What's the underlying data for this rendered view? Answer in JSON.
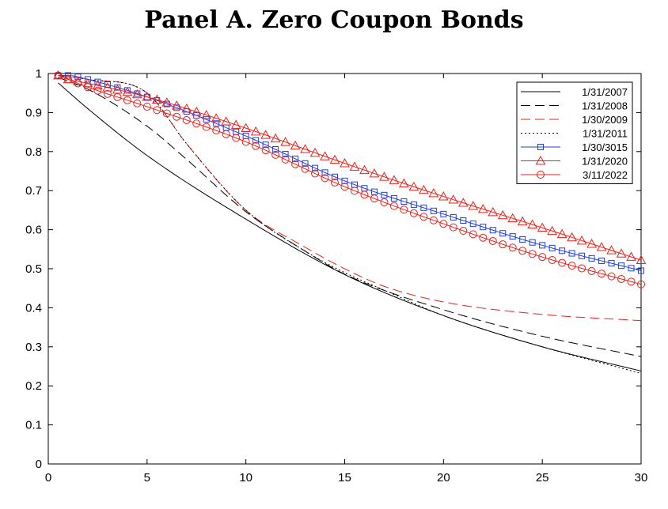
{
  "chart_data": {
    "type": "line",
    "title": "Panel A. Zero Coupon Bonds",
    "xlabel": "",
    "ylabel": "",
    "xlim": [
      0,
      30
    ],
    "ylim": [
      0,
      1
    ],
    "x_ticks": [
      0,
      5,
      10,
      15,
      20,
      25,
      30
    ],
    "y_ticks": [
      0,
      0.1,
      0.2,
      0.3,
      0.4,
      0.5,
      0.6,
      0.7,
      0.8,
      0.9,
      1
    ],
    "grid": false,
    "legend_position": "top-right",
    "series": [
      {
        "name": "1/31/2007",
        "color": "#000000",
        "line_style": "solid",
        "marker": "none",
        "x": [
          0.5,
          2,
          5,
          10,
          15,
          20,
          25,
          30
        ],
        "y": [
          0.976,
          0.91,
          0.79,
          0.627,
          0.485,
          0.38,
          0.3,
          0.238
        ]
      },
      {
        "name": "1/31/2008",
        "color": "#000000",
        "line_style": "dashed",
        "marker": "none",
        "x": [
          0.5,
          2,
          5,
          7,
          10,
          13,
          15,
          20,
          25,
          30
        ],
        "y": [
          0.99,
          0.96,
          0.865,
          0.78,
          0.646,
          0.545,
          0.486,
          0.395,
          0.327,
          0.275
        ]
      },
      {
        "name": "1/30/2009",
        "color": "#e8211b",
        "line_style": "dashed",
        "marker": "none",
        "x": [
          0.5,
          2,
          5,
          7,
          10,
          13,
          15,
          17,
          20,
          25,
          30
        ],
        "y": [
          0.995,
          0.985,
          0.95,
          0.82,
          0.65,
          0.555,
          0.5,
          0.455,
          0.415,
          0.383,
          0.367
        ]
      },
      {
        "name": "1/31/2011",
        "color": "#000000",
        "line_style": "dotted",
        "marker": "none",
        "x": [
          0.5,
          2,
          5,
          7,
          10,
          13,
          15,
          17,
          20,
          25,
          30
        ],
        "y": [
          0.995,
          0.985,
          0.95,
          0.82,
          0.65,
          0.545,
          0.49,
          0.445,
          0.38,
          0.3,
          0.232
        ]
      },
      {
        "name": "1/30/3015",
        "color": "#1f3fe0",
        "line_style": "solid",
        "marker": "square",
        "x": [
          0.5,
          1,
          2,
          5,
          10,
          15,
          20,
          25,
          30
        ],
        "y": [
          0.995,
          0.995,
          0.985,
          0.94,
          0.84,
          0.725,
          0.64,
          0.56,
          0.495
        ]
      },
      {
        "name": "1/31/2020",
        "color": "#e8211b",
        "line_style": "solid",
        "marker": "triangle",
        "x": [
          0.5,
          1,
          2,
          5,
          10,
          15,
          20,
          25,
          30
        ],
        "y": [
          0.995,
          0.985,
          0.975,
          0.94,
          0.86,
          0.77,
          0.685,
          0.605,
          0.522
        ]
      },
      {
        "name": "3/11/2022",
        "color": "#e8211b",
        "line_style": "solid",
        "marker": "circle",
        "x": [
          0.5,
          1,
          2,
          5,
          10,
          15,
          20,
          25,
          30
        ],
        "y": [
          0.995,
          0.985,
          0.965,
          0.915,
          0.825,
          0.71,
          0.615,
          0.53,
          0.46
        ]
      }
    ]
  }
}
